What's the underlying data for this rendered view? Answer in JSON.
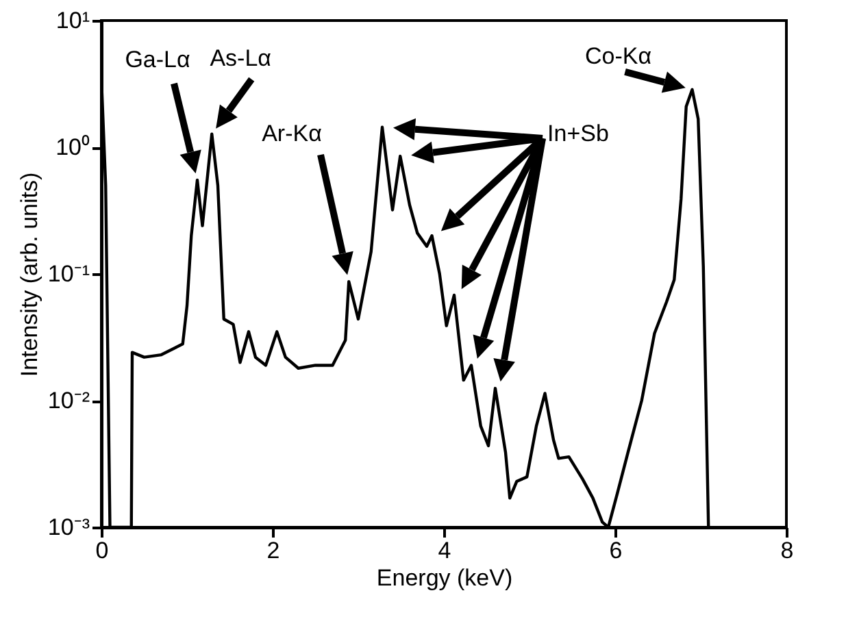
{
  "chart_data": {
    "type": "line",
    "xlabel": "Energy (keV)",
    "ylabel": "Intensity (arb. units)",
    "log": "y",
    "xlim": [
      0,
      8
    ],
    "xticks": [
      0,
      2,
      4,
      6,
      8
    ],
    "ylim": [
      0.001,
      10
    ],
    "yticks": [
      {
        "value": 0.001,
        "label": "10⁻³"
      },
      {
        "value": 0.01,
        "label": "10⁻²"
      },
      {
        "value": 0.1,
        "label": "10⁻¹"
      },
      {
        "value": 1,
        "label": "10⁰"
      },
      {
        "value": 10,
        "label": "10¹"
      }
    ],
    "x": [
      0,
      0.05,
      0.1,
      0.35,
      0.36,
      0.5,
      0.7,
      0.95,
      1.0,
      1.05,
      1.12,
      1.18,
      1.29,
      1.36,
      1.43,
      1.54,
      1.62,
      1.72,
      1.8,
      1.92,
      2.05,
      2.15,
      2.3,
      2.5,
      2.7,
      2.85,
      2.89,
      3.0,
      3.15,
      3.28,
      3.4,
      3.49,
      3.6,
      3.69,
      3.8,
      3.86,
      3.95,
      4.03,
      4.12,
      4.23,
      4.32,
      4.43,
      4.52,
      4.6,
      4.72,
      4.77,
      4.85,
      4.97,
      5.08,
      5.18,
      5.28,
      5.34,
      5.46,
      5.62,
      5.74,
      5.85,
      5.92,
      6.03,
      6.15,
      6.31,
      6.46,
      6.6,
      6.69,
      6.77,
      6.83,
      6.9,
      6.97,
      7.03,
      7.09
    ],
    "series": [
      {
        "color": "#000000",
        "values": [
          3.5,
          0.5,
          0.001,
          0.001,
          0.024,
          0.022,
          0.023,
          0.028,
          0.056,
          0.2,
          0.55,
          0.24,
          1.27,
          0.5,
          0.044,
          0.04,
          0.02,
          0.035,
          0.022,
          0.019,
          0.035,
          0.022,
          0.018,
          0.019,
          0.019,
          0.03,
          0.087,
          0.044,
          0.15,
          1.44,
          0.32,
          0.85,
          0.35,
          0.21,
          0.165,
          0.2,
          0.1,
          0.039,
          0.068,
          0.0145,
          0.019,
          0.0063,
          0.0044,
          0.0125,
          0.0039,
          0.0017,
          0.0023,
          0.0025,
          0.0063,
          0.0114,
          0.0049,
          0.0035,
          0.0036,
          0.0024,
          0.0017,
          0.0011,
          0.001,
          0.0019,
          0.0039,
          0.01,
          0.034,
          0.06,
          0.09,
          0.39,
          2.1,
          2.85,
          1.67,
          0.115,
          0.001
        ]
      }
    ],
    "annotations": [
      "Ga-Lα",
      {
        "text": "As-Lα",
        "x": 1.29,
        "y": 1.27
      },
      "Ar-Kα",
      "In+Sb",
      {
        "text": "Co-Kα",
        "x": 6.9,
        "y": 2.85
      }
    ]
  }
}
